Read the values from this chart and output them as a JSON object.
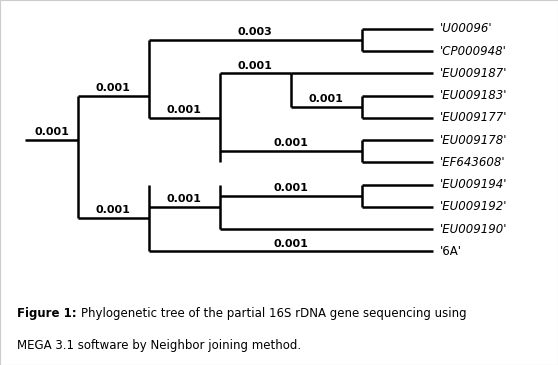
{
  "figure_caption_bold": "Figure 1:",
  "figure_caption_rest": " Phylogenetic tree of the partial 16S rDNA gene sequencing using MEGA 3.1 software by Neighbor joining method.",
  "background_color": "#ffffff",
  "line_color": "#000000",
  "line_width": 1.8,
  "taxa": [
    "'U00096'",
    "'CP000948'",
    "'EU009187'",
    "'EU009183'",
    "'EU009177'",
    "'EU009178'",
    "'EF643608'",
    "'EU009194'",
    "'EU009192'",
    "'EU009190'",
    "'6A'"
  ],
  "font_size_taxa": 8.5,
  "font_size_branch": 8.0,
  "font_size_caption": 8.5,
  "border_color": "#cccccc",
  "border_lw": 0.8
}
